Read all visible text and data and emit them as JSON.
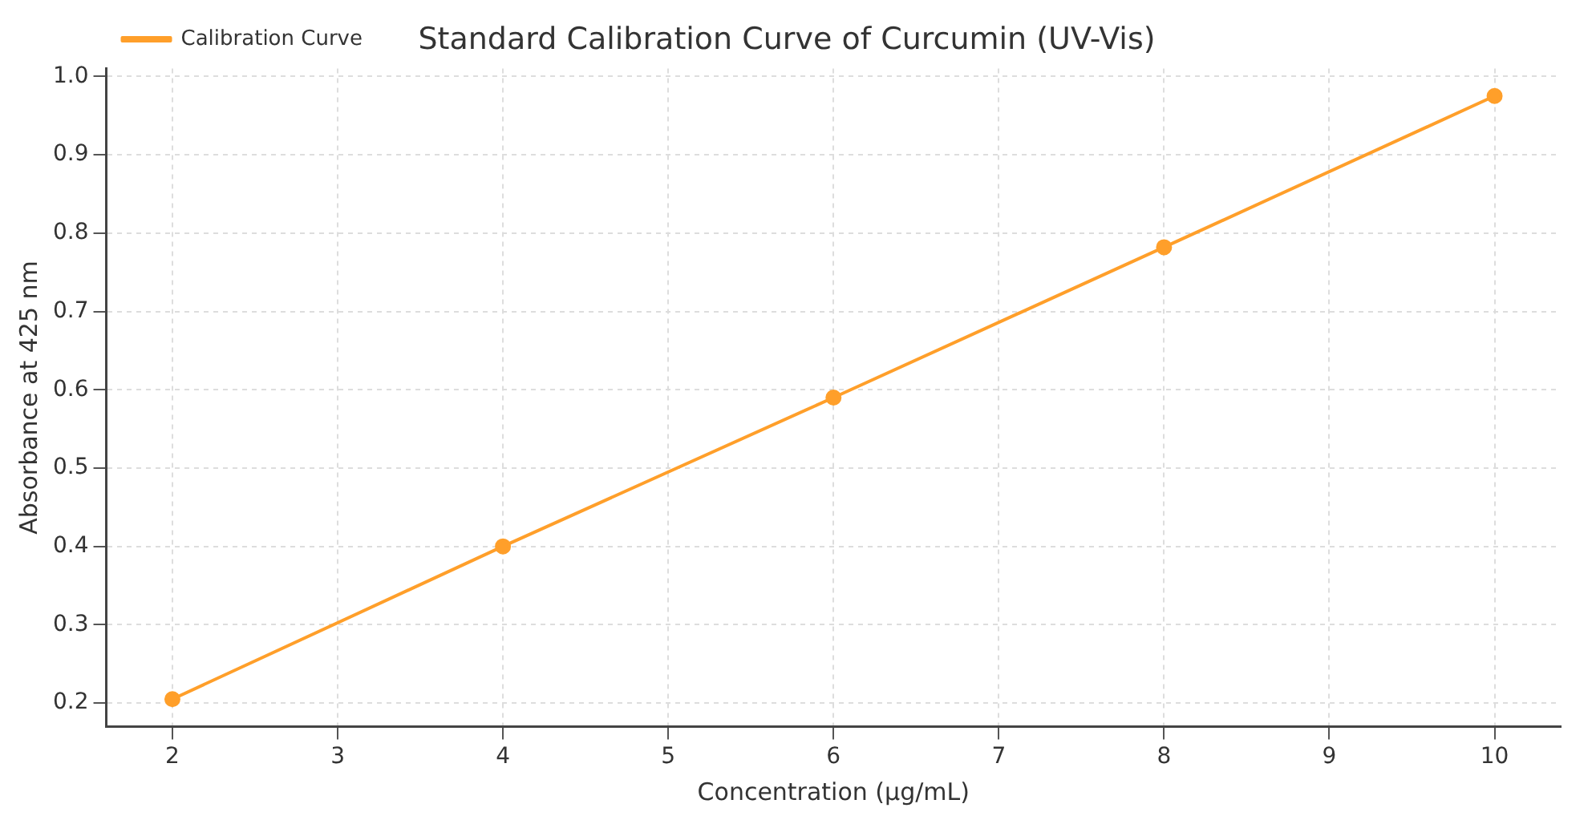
{
  "chart_data": {
    "type": "line",
    "title": "Standard Calibration Curve of Curcumin (UV-Vis)",
    "xlabel": "Concentration (µg/mL)",
    "ylabel": "Absorbance at 425 nm",
    "x": [
      2,
      4,
      6,
      8,
      10
    ],
    "series": [
      {
        "name": "Calibration Curve",
        "color": "#ff9f2a",
        "values": [
          0.205,
          0.4,
          0.59,
          0.782,
          0.975
        ]
      }
    ],
    "xlim": [
      1.6,
      10.4
    ],
    "ylim": [
      0.17,
      1.01
    ],
    "xticks": [
      2,
      3,
      4,
      5,
      6,
      7,
      8,
      9,
      10
    ],
    "yticks": [
      0.2,
      0.3,
      0.4,
      0.5,
      0.6,
      0.7,
      0.8,
      0.9,
      {
        "value": 1,
        "label": "1.0"
      }
    ],
    "grid": true,
    "legend": "top left",
    "marker": "circle",
    "line_style": "solid"
  }
}
